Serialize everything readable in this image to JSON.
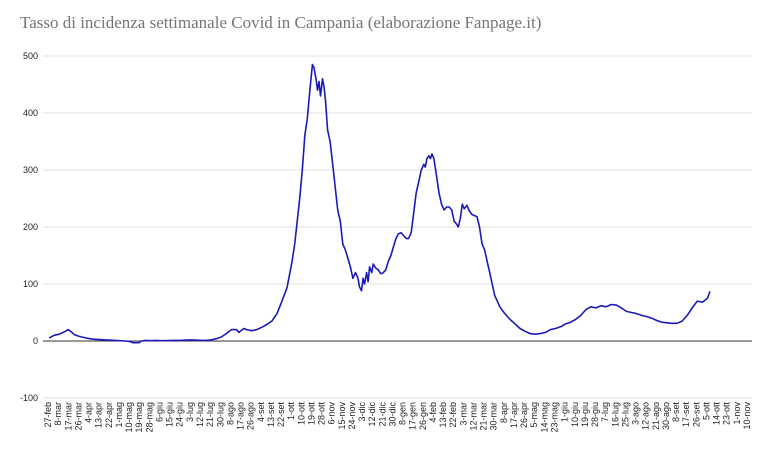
{
  "chart_data": {
    "type": "line",
    "title": "Tasso di incidenza settimanale Covid in Campania (elaborazione Fanpage.it)",
    "xlabel": "",
    "ylabel": "",
    "ylim": [
      -100,
      500
    ],
    "yticks": [
      "500",
      "400",
      "300",
      "200",
      "100",
      "0",
      "-100"
    ],
    "grid": true,
    "legend": "none",
    "line_color": "#1a1ab8",
    "categories": [
      "27-feb",
      "8-mar",
      "17-mar",
      "26-mar",
      "4-apr",
      "13-apr",
      "22-apr",
      "1-mag",
      "10-mag",
      "19-mag",
      "28-mag",
      "6-giu",
      "15-giu",
      "24-giu",
      "3-lug",
      "12-lug",
      "21-lug",
      "30-lug",
      "8-ago",
      "17-ago",
      "26-ago",
      "4-set",
      "13-set",
      "22-set",
      "1-ott",
      "10-ott",
      "19-ott",
      "28-ott",
      "6-nov",
      "15-nov",
      "24-nov",
      "3-dic",
      "12-dic",
      "21-dic",
      "30-dic",
      "8-gen",
      "17-gen",
      "26-gen",
      "4-feb",
      "13-feb",
      "22-feb",
      "3-mar",
      "12-mar",
      "21-mar",
      "30-mar",
      "8-apr",
      "17-apr",
      "26-apr",
      "5-mag",
      "14-mag",
      "23-mag",
      "1-giu",
      "10-giu",
      "19-giu",
      "28-giu",
      "7-lug",
      "16-lug",
      "25-lug",
      "3-ago",
      "12-ago",
      "21-ago",
      "30-ago",
      "8-set",
      "17-set",
      "26-set",
      "5-ott",
      "14-ott",
      "23-ott",
      "1-nov",
      "10-nov"
    ],
    "series": [
      {
        "values": [
          [
            1,
            5
          ],
          [
            2,
            10
          ],
          [
            3,
            12
          ],
          [
            4,
            16
          ],
          [
            4.8,
            20
          ],
          [
            5.4,
            16
          ],
          [
            6,
            11
          ],
          [
            7,
            8
          ],
          [
            8,
            6
          ],
          [
            9,
            4
          ],
          [
            10,
            3
          ],
          [
            11,
            2.5
          ],
          [
            12,
            2
          ],
          [
            13,
            1.5
          ],
          [
            14,
            1
          ],
          [
            15,
            0.5
          ],
          [
            16,
            0
          ],
          [
            17,
            -1
          ],
          [
            17.6,
            -3
          ],
          [
            18.8,
            -3
          ],
          [
            19.2,
            0
          ],
          [
            20,
            1
          ],
          [
            21,
            0.5
          ],
          [
            22,
            1
          ],
          [
            23,
            0.5
          ],
          [
            24,
            0.5
          ],
          [
            25,
            1
          ],
          [
            26,
            1
          ],
          [
            27,
            1
          ],
          [
            28,
            1.5
          ],
          [
            29,
            2
          ],
          [
            30,
            1.5
          ],
          [
            31,
            1
          ],
          [
            32,
            1
          ],
          [
            33,
            2
          ],
          [
            34,
            4
          ],
          [
            35,
            7
          ],
          [
            36,
            13
          ],
          [
            37,
            20
          ],
          [
            38,
            20
          ],
          [
            38.5,
            15
          ],
          [
            39,
            19
          ],
          [
            39.5,
            22
          ],
          [
            40,
            20
          ],
          [
            41,
            18
          ],
          [
            42,
            20
          ],
          [
            43,
            24
          ],
          [
            44,
            29
          ],
          [
            45,
            35
          ],
          [
            46,
            48
          ],
          [
            47,
            70
          ],
          [
            48,
            94
          ],
          [
            49,
            140
          ],
          [
            49.5,
            170
          ],
          [
            50,
            210
          ],
          [
            50.5,
            250
          ],
          [
            51,
            300
          ],
          [
            51.5,
            360
          ],
          [
            52,
            390
          ],
          [
            52.5,
            440
          ],
          [
            53,
            485
          ],
          [
            53.3,
            480
          ],
          [
            53.7,
            460
          ],
          [
            54,
            440
          ],
          [
            54.3,
            455
          ],
          [
            54.6,
            430
          ],
          [
            55,
            460
          ],
          [
            55.3,
            445
          ],
          [
            55.6,
            420
          ],
          [
            56,
            370
          ],
          [
            56.5,
            350
          ],
          [
            57,
            310
          ],
          [
            57.5,
            270
          ],
          [
            58,
            230
          ],
          [
            58.5,
            210
          ],
          [
            59,
            170
          ],
          [
            59.5,
            160
          ],
          [
            60,
            145
          ],
          [
            60.5,
            130
          ],
          [
            61,
            110
          ],
          [
            61.5,
            120
          ],
          [
            62,
            110
          ],
          [
            62.3,
            95
          ],
          [
            62.7,
            88
          ],
          [
            63,
            110
          ],
          [
            63.3,
            100
          ],
          [
            63.7,
            120
          ],
          [
            64,
            104
          ],
          [
            64.3,
            130
          ],
          [
            64.7,
            120
          ],
          [
            65,
            135
          ],
          [
            65.5,
            128
          ],
          [
            66,
            125
          ],
          [
            66.5,
            118
          ],
          [
            67,
            120
          ],
          [
            67.5,
            125
          ],
          [
            68,
            140
          ],
          [
            68.5,
            150
          ],
          [
            69,
            165
          ],
          [
            69.5,
            180
          ],
          [
            70,
            188
          ],
          [
            70.5,
            190
          ],
          [
            71,
            185
          ],
          [
            71.5,
            180
          ],
          [
            72,
            180
          ],
          [
            72.5,
            190
          ],
          [
            73,
            225
          ],
          [
            73.5,
            260
          ],
          [
            74,
            280
          ],
          [
            74.5,
            300
          ],
          [
            75,
            310
          ],
          [
            75.3,
            305
          ],
          [
            75.6,
            320
          ],
          [
            76,
            325
          ],
          [
            76.3,
            320
          ],
          [
            76.6,
            328
          ],
          [
            77,
            320
          ],
          [
            77.5,
            290
          ],
          [
            78,
            260
          ],
          [
            78.5,
            240
          ],
          [
            79,
            230
          ],
          [
            79.5,
            235
          ],
          [
            80,
            235
          ],
          [
            80.5,
            230
          ],
          [
            81,
            210
          ],
          [
            81.5,
            205
          ],
          [
            81.8,
            200
          ],
          [
            82.2,
            215
          ],
          [
            82.6,
            240
          ],
          [
            83,
            232
          ],
          [
            83.5,
            238
          ],
          [
            84,
            228
          ],
          [
            84.5,
            222
          ],
          [
            85,
            220
          ],
          [
            85.5,
            218
          ],
          [
            86,
            200
          ],
          [
            86.5,
            170
          ],
          [
            87,
            160
          ],
          [
            87.5,
            140
          ],
          [
            88,
            120
          ],
          [
            88.5,
            100
          ],
          [
            89,
            80
          ],
          [
            89.5,
            70
          ],
          [
            90,
            60
          ],
          [
            91,
            48
          ],
          [
            92,
            38
          ],
          [
            93,
            30
          ],
          [
            94,
            22
          ],
          [
            95,
            17
          ],
          [
            96,
            13
          ],
          [
            97,
            12
          ],
          [
            98,
            13
          ],
          [
            99,
            15
          ],
          [
            100,
            20
          ],
          [
            101,
            22
          ],
          [
            102,
            25
          ],
          [
            103,
            30
          ],
          [
            104,
            33
          ],
          [
            105,
            38
          ],
          [
            106,
            45
          ],
          [
            107,
            55
          ],
          [
            108,
            60
          ],
          [
            109,
            58
          ],
          [
            110,
            62
          ],
          [
            111,
            60
          ],
          [
            112,
            64
          ],
          [
            113,
            63
          ],
          [
            114,
            58
          ],
          [
            115,
            52
          ],
          [
            116,
            50
          ],
          [
            117,
            48
          ],
          [
            118,
            45
          ],
          [
            119,
            43
          ],
          [
            120,
            40
          ],
          [
            121,
            36
          ],
          [
            122,
            33
          ],
          [
            123,
            32
          ],
          [
            124,
            31
          ],
          [
            125,
            31
          ],
          [
            126,
            35
          ],
          [
            127,
            45
          ],
          [
            128,
            58
          ],
          [
            129,
            70
          ],
          [
            130,
            68
          ],
          [
            131,
            75
          ],
          [
            131.5,
            87
          ]
        ]
      }
    ]
  }
}
